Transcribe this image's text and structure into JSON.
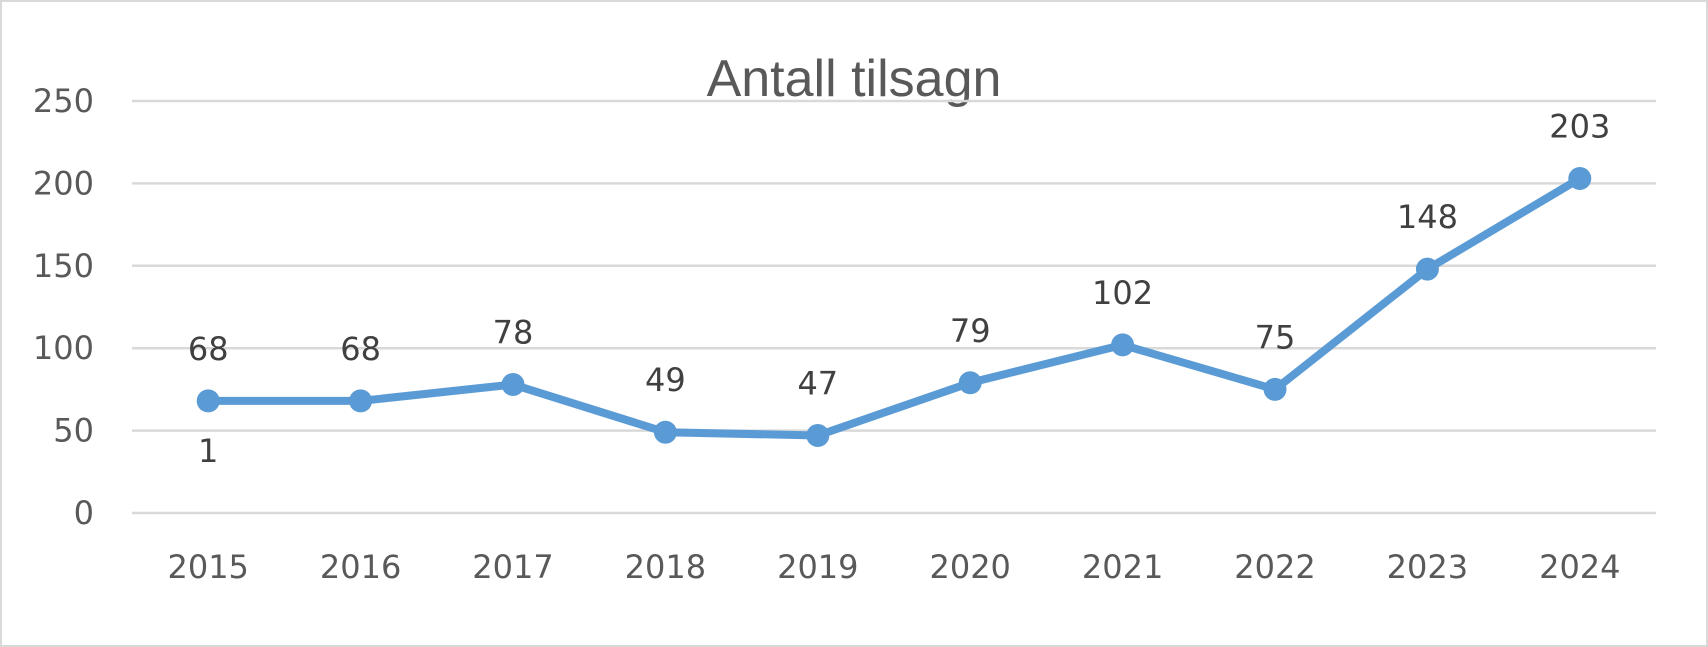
{
  "chart_data": {
    "type": "line",
    "title": "Antall tilsagn",
    "xlabel": "",
    "ylabel": "",
    "categories": [
      "2015",
      "2016",
      "2017",
      "2018",
      "2019",
      "2020",
      "2021",
      "2022",
      "2023",
      "2024"
    ],
    "series": [
      {
        "values": [
          68,
          68,
          78,
          49,
          47,
          79,
          102,
          75,
          148,
          203
        ],
        "color": "#5b9bd5"
      }
    ],
    "data_labels": [
      "68",
      "68",
      "78",
      "49",
      "47",
      "79",
      "102",
      "75",
      "148",
      "203"
    ],
    "annotations": [
      {
        "category": "2015",
        "text": "1"
      }
    ],
    "y_ticks": [
      "0",
      "50",
      "100",
      "150",
      "200",
      "250"
    ],
    "ylim": [
      0,
      250
    ],
    "grid": true,
    "legend": "none"
  }
}
